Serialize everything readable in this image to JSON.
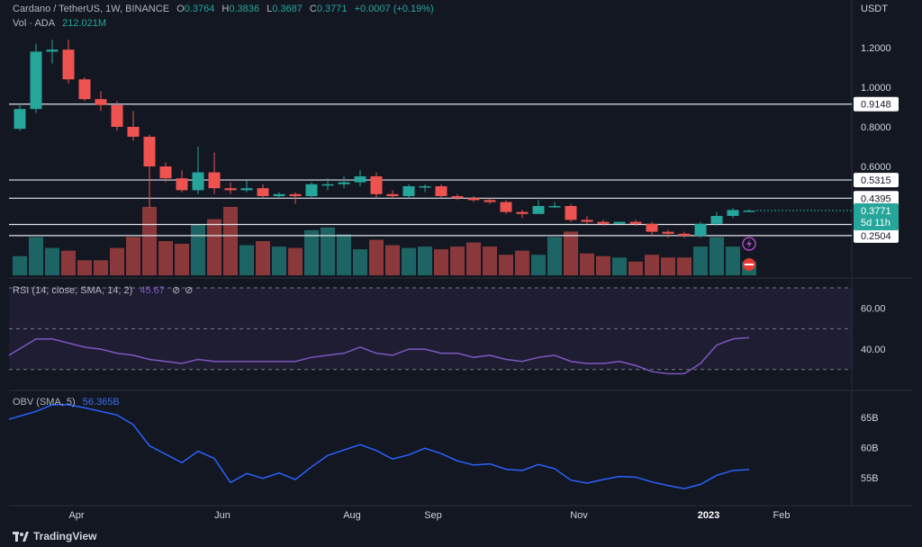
{
  "header": {
    "symbol": "Cardano / TetherUS, 1W, BINANCE",
    "ohlc": [
      {
        "label": "O",
        "value": "0.3764"
      },
      {
        "label": "H",
        "value": "0.3836"
      },
      {
        "label": "L",
        "value": "0.3687"
      },
      {
        "label": "C",
        "value": "0.3771"
      }
    ],
    "change": "+0.0007 (+0.19%)",
    "vol_label": "Vol · ADA",
    "vol_value": "212.021M",
    "currency": "USDT"
  },
  "brand": "TradingView",
  "colors": {
    "up": "#26a69a",
    "down": "#ef5350",
    "rsi": "#7e57c2",
    "obv": "#2962ff",
    "background": "#131722"
  },
  "chart_data": [
    {
      "type": "candlestick",
      "title": "Cardano / TetherUS, 1W, BINANCE",
      "yticks": [
        "1.2000",
        "1.0000",
        "0.8000",
        "0.6000"
      ],
      "ytick_values": [
        1.2,
        1.0,
        0.8,
        0.6
      ],
      "xticks": [
        {
          "label": "Apr",
          "index": 3.5
        },
        {
          "label": "Jun",
          "index": 12.5
        },
        {
          "label": "Aug",
          "index": 20.5
        },
        {
          "label": "Sep",
          "index": 25.5
        },
        {
          "label": "Nov",
          "index": 34.5
        },
        {
          "label": "2023",
          "index": 42.5
        },
        {
          "label": "Feb",
          "index": 47
        }
      ],
      "levels": [
        {
          "value": 0.9148,
          "label": "0.9148"
        },
        {
          "value": 0.5315,
          "label": "0.5315"
        },
        {
          "value": 0.4395,
          "label": "0.4395"
        },
        {
          "value": 0.3067,
          "label": "0.3067"
        },
        {
          "value": 0.2504,
          "label": "0.2504"
        }
      ],
      "last_price": {
        "label": "0.3771",
        "countdown": "5d 11h"
      },
      "candles": [
        {
          "o": 0.79,
          "h": 0.92,
          "l": 0.78,
          "c": 0.89
        },
        {
          "o": 0.89,
          "h": 1.22,
          "l": 0.87,
          "c": 1.18
        },
        {
          "o": 1.18,
          "h": 1.24,
          "l": 1.12,
          "c": 1.19
        },
        {
          "o": 1.19,
          "h": 1.24,
          "l": 1.02,
          "c": 1.04
        },
        {
          "o": 1.04,
          "h": 1.05,
          "l": 0.93,
          "c": 0.94
        },
        {
          "o": 0.94,
          "h": 0.98,
          "l": 0.88,
          "c": 0.91
        },
        {
          "o": 0.91,
          "h": 0.93,
          "l": 0.78,
          "c": 0.8
        },
        {
          "o": 0.8,
          "h": 0.88,
          "l": 0.73,
          "c": 0.75
        },
        {
          "o": 0.75,
          "h": 0.76,
          "l": 0.39,
          "c": 0.6
        },
        {
          "o": 0.6,
          "h": 0.62,
          "l": 0.52,
          "c": 0.54
        },
        {
          "o": 0.54,
          "h": 0.58,
          "l": 0.47,
          "c": 0.48
        },
        {
          "o": 0.48,
          "h": 0.7,
          "l": 0.46,
          "c": 0.57
        },
        {
          "o": 0.57,
          "h": 0.67,
          "l": 0.46,
          "c": 0.49
        },
        {
          "o": 0.49,
          "h": 0.52,
          "l": 0.46,
          "c": 0.48
        },
        {
          "o": 0.48,
          "h": 0.53,
          "l": 0.47,
          "c": 0.49
        },
        {
          "o": 0.49,
          "h": 0.51,
          "l": 0.44,
          "c": 0.45
        },
        {
          "o": 0.45,
          "h": 0.47,
          "l": 0.44,
          "c": 0.46
        },
        {
          "o": 0.46,
          "h": 0.47,
          "l": 0.41,
          "c": 0.45
        },
        {
          "o": 0.45,
          "h": 0.52,
          "l": 0.44,
          "c": 0.51
        },
        {
          "o": 0.51,
          "h": 0.54,
          "l": 0.48,
          "c": 0.51
        },
        {
          "o": 0.51,
          "h": 0.55,
          "l": 0.49,
          "c": 0.52
        },
        {
          "o": 0.52,
          "h": 0.58,
          "l": 0.5,
          "c": 0.55
        },
        {
          "o": 0.55,
          "h": 0.57,
          "l": 0.44,
          "c": 0.46
        },
        {
          "o": 0.46,
          "h": 0.48,
          "l": 0.44,
          "c": 0.45
        },
        {
          "o": 0.45,
          "h": 0.51,
          "l": 0.44,
          "c": 0.5
        },
        {
          "o": 0.5,
          "h": 0.51,
          "l": 0.47,
          "c": 0.5
        },
        {
          "o": 0.5,
          "h": 0.51,
          "l": 0.44,
          "c": 0.45
        },
        {
          "o": 0.45,
          "h": 0.46,
          "l": 0.43,
          "c": 0.44
        },
        {
          "o": 0.44,
          "h": 0.45,
          "l": 0.42,
          "c": 0.43
        },
        {
          "o": 0.43,
          "h": 0.44,
          "l": 0.41,
          "c": 0.42
        },
        {
          "o": 0.42,
          "h": 0.43,
          "l": 0.36,
          "c": 0.37
        },
        {
          "o": 0.37,
          "h": 0.38,
          "l": 0.34,
          "c": 0.36
        },
        {
          "o": 0.36,
          "h": 0.43,
          "l": 0.36,
          "c": 0.4
        },
        {
          "o": 0.4,
          "h": 0.42,
          "l": 0.39,
          "c": 0.4
        },
        {
          "o": 0.4,
          "h": 0.41,
          "l": 0.32,
          "c": 0.33
        },
        {
          "o": 0.33,
          "h": 0.35,
          "l": 0.31,
          "c": 0.32
        },
        {
          "o": 0.32,
          "h": 0.33,
          "l": 0.3,
          "c": 0.31
        },
        {
          "o": 0.31,
          "h": 0.32,
          "l": 0.31,
          "c": 0.32
        },
        {
          "o": 0.32,
          "h": 0.33,
          "l": 0.3,
          "c": 0.31
        },
        {
          "o": 0.31,
          "h": 0.32,
          "l": 0.25,
          "c": 0.27
        },
        {
          "o": 0.27,
          "h": 0.28,
          "l": 0.24,
          "c": 0.26
        },
        {
          "o": 0.26,
          "h": 0.27,
          "l": 0.24,
          "c": 0.25
        },
        {
          "o": 0.25,
          "h": 0.32,
          "l": 0.24,
          "c": 0.31
        },
        {
          "o": 0.31,
          "h": 0.37,
          "l": 0.3,
          "c": 0.35
        },
        {
          "o": 0.35,
          "h": 0.39,
          "l": 0.34,
          "c": 0.38
        },
        {
          "o": 0.3764,
          "h": 0.3836,
          "l": 0.3687,
          "c": 0.3771
        }
      ]
    },
    {
      "type": "bar",
      "title": "Vol · ADA",
      "values": [
        14,
        28,
        20,
        18,
        11,
        11,
        20,
        28,
        50,
        25,
        23,
        37,
        41,
        50,
        22,
        25,
        21,
        20,
        33,
        35,
        30,
        19,
        26,
        22,
        20,
        21,
        19,
        21,
        24,
        21,
        15,
        18,
        15,
        28,
        32,
        16,
        14,
        13,
        10,
        15,
        13,
        13,
        21,
        28,
        21,
        10
      ],
      "unit": "M"
    },
    {
      "type": "line",
      "title": "RSI (14, close, SMA, 14, 2)",
      "current": "45.67",
      "ylim": [
        26,
        70
      ],
      "band": [
        30,
        70
      ],
      "midline": 50,
      "yticks": [
        "60.00",
        "40.00"
      ],
      "ytick_values": [
        60,
        40
      ],
      "values": [
        37,
        45,
        45,
        43,
        41,
        40,
        38,
        37,
        35,
        34,
        33,
        35,
        34,
        34,
        34,
        34,
        34,
        34,
        36,
        37,
        38,
        41,
        38,
        37,
        40,
        40,
        38,
        38,
        36,
        37,
        35,
        34,
        36,
        37,
        34,
        33,
        33,
        34,
        32,
        29,
        28,
        28,
        33,
        42,
        45,
        45.67
      ]
    },
    {
      "type": "line",
      "title": "OBV (SMA, 5)",
      "current": "56.365B",
      "ylim": [
        50,
        70
      ],
      "yticks": [
        "65B",
        "60B",
        "55B"
      ],
      "ytick_values": [
        65,
        60,
        55
      ],
      "values": [
        64.7,
        66,
        67.1,
        67.1,
        66.6,
        66,
        65.4,
        63.8,
        60.3,
        58.9,
        57.5,
        59.4,
        58.2,
        54.2,
        55.7,
        54.9,
        55.8,
        54.7,
        56.8,
        58.7,
        59.6,
        60.5,
        59.5,
        58.1,
        58.8,
        59.9,
        59,
        57.8,
        57.1,
        57.3,
        56.4,
        56.2,
        57.2,
        56.5,
        54.6,
        54.1,
        54.7,
        55.2,
        55.1,
        54.3,
        53.7,
        53.2,
        53.9,
        55.4,
        56.2,
        56.365
      ]
    }
  ]
}
